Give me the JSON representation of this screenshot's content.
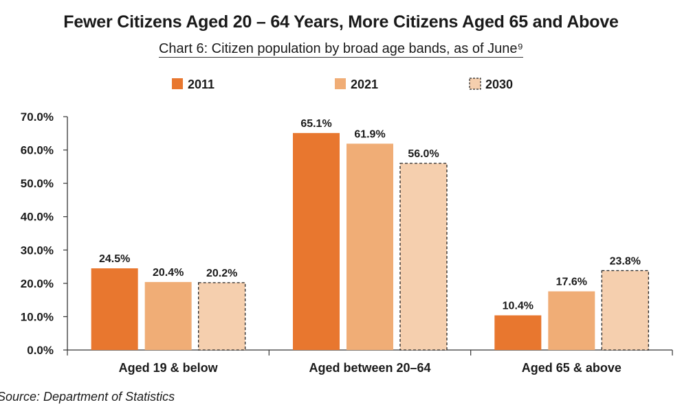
{
  "title": "Fewer Citizens Aged 20 – 64 Years, More Citizens Aged 65 and Above",
  "subtitle": "Chart 6: Citizen population by broad age bands, as of June⁹",
  "source": "Source: Department of Statistics",
  "colors": {
    "s2011": "#E8772F",
    "s2021": "#F0AD76",
    "s2030": "#F5CFAE",
    "axis": "#333333"
  },
  "chart_data": {
    "type": "bar",
    "categories": [
      "Aged 19 & below",
      "Aged between 20–64",
      "Aged 65 & above"
    ],
    "series": [
      {
        "name": "2011",
        "values": [
          24.5,
          65.1,
          10.4
        ],
        "labels": [
          "24.5%",
          "65.1%",
          "10.4%"
        ],
        "dashed": false
      },
      {
        "name": "2021",
        "values": [
          20.4,
          61.9,
          17.6
        ],
        "labels": [
          "20.4%",
          "61.9%",
          "17.6%"
        ],
        "dashed": false
      },
      {
        "name": "2030",
        "values": [
          20.2,
          56.0,
          23.8
        ],
        "labels": [
          "20.2%",
          "56.0%",
          "23.8%"
        ],
        "dashed": true
      }
    ],
    "ylim": [
      0,
      70
    ],
    "yticks": [
      "0.0%",
      "10.0%",
      "20.0%",
      "30.0%",
      "40.0%",
      "50.0%",
      "60.0%",
      "70.0%"
    ],
    "legend_position": "top-center",
    "grid": false
  }
}
